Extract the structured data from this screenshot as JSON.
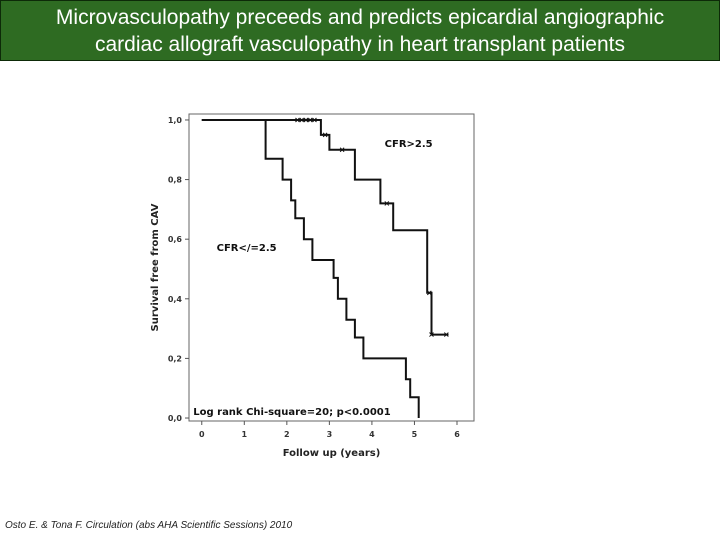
{
  "slide": {
    "title": "Microvasculopathy preceeds and predicts epicardial angiographic\ncardiac allograft vasculopathy in heart transplant patients",
    "citation": "Osto E. & Tona F.  Circulation (abs AHA Scientific Sessions) 2010"
  },
  "colors": {
    "title_bg": "#2e6b22",
    "line": "#111111",
    "axis": "#555555"
  },
  "chart_data": {
    "type": "line",
    "xlabel": "Follow up (years)",
    "ylabel": "Survival free from CAV",
    "xlim": [
      -0.3,
      6.4
    ],
    "ylim": [
      -0.01,
      1.02
    ],
    "x_ticks": [
      0,
      1,
      2,
      3,
      4,
      5,
      6
    ],
    "x_tick_labels": [
      "0",
      "1",
      "2",
      "3",
      "4",
      "5",
      "6"
    ],
    "y_ticks": [
      0.0,
      0.2,
      0.4,
      0.6,
      0.8,
      1.0
    ],
    "y_tick_labels": [
      "0,0",
      "0,2",
      "0,4",
      "0,6",
      "0,8",
      "1,0"
    ],
    "series": [
      {
        "name": "CFR>2.5",
        "step_points": [
          [
            0,
            1.0
          ],
          [
            2.8,
            1.0
          ],
          [
            2.8,
            0.95
          ],
          [
            3.0,
            0.95
          ],
          [
            3.0,
            0.9
          ],
          [
            3.6,
            0.9
          ],
          [
            3.6,
            0.8
          ],
          [
            4.2,
            0.8
          ],
          [
            4.2,
            0.72
          ],
          [
            4.5,
            0.72
          ],
          [
            4.5,
            0.63
          ],
          [
            5.3,
            0.63
          ],
          [
            5.3,
            0.42
          ],
          [
            5.4,
            0.42
          ],
          [
            5.4,
            0.28
          ],
          [
            5.8,
            0.28
          ]
        ],
        "censored": [
          [
            2.25,
            1.0
          ],
          [
            2.35,
            1.0
          ],
          [
            2.45,
            1.0
          ],
          [
            2.55,
            1.0
          ],
          [
            2.65,
            1.0
          ],
          [
            2.9,
            0.95
          ],
          [
            3.3,
            0.9
          ],
          [
            4.35,
            0.72
          ],
          [
            5.35,
            0.42
          ],
          [
            5.4,
            0.28
          ],
          [
            5.75,
            0.28
          ]
        ]
      },
      {
        "name": "CFR</=2.5",
        "step_points": [
          [
            0,
            1.0
          ],
          [
            1.5,
            1.0
          ],
          [
            1.5,
            0.87
          ],
          [
            1.9,
            0.87
          ],
          [
            1.9,
            0.8
          ],
          [
            2.1,
            0.8
          ],
          [
            2.1,
            0.73
          ],
          [
            2.2,
            0.73
          ],
          [
            2.2,
            0.67
          ],
          [
            2.4,
            0.67
          ],
          [
            2.4,
            0.6
          ],
          [
            2.6,
            0.6
          ],
          [
            2.6,
            0.53
          ],
          [
            3.1,
            0.53
          ],
          [
            3.1,
            0.47
          ],
          [
            3.2,
            0.47
          ],
          [
            3.2,
            0.4
          ],
          [
            3.4,
            0.4
          ],
          [
            3.4,
            0.33
          ],
          [
            3.6,
            0.33
          ],
          [
            3.6,
            0.27
          ],
          [
            3.8,
            0.27
          ],
          [
            3.8,
            0.2
          ],
          [
            4.8,
            0.2
          ],
          [
            4.8,
            0.13
          ],
          [
            4.9,
            0.13
          ],
          [
            4.9,
            0.07
          ],
          [
            5.1,
            0.07
          ],
          [
            5.1,
            0.0
          ]
        ],
        "censored": []
      }
    ],
    "annotations": [
      {
        "text": "CFR>2.5",
        "x": 4.3,
        "y": 0.91
      },
      {
        "text": "CFR</=2.5",
        "x": 0.35,
        "y": 0.56
      },
      {
        "text": "Log rank Chi-square=20; p<0.0001",
        "x": -0.2,
        "y": 0.01
      }
    ]
  }
}
